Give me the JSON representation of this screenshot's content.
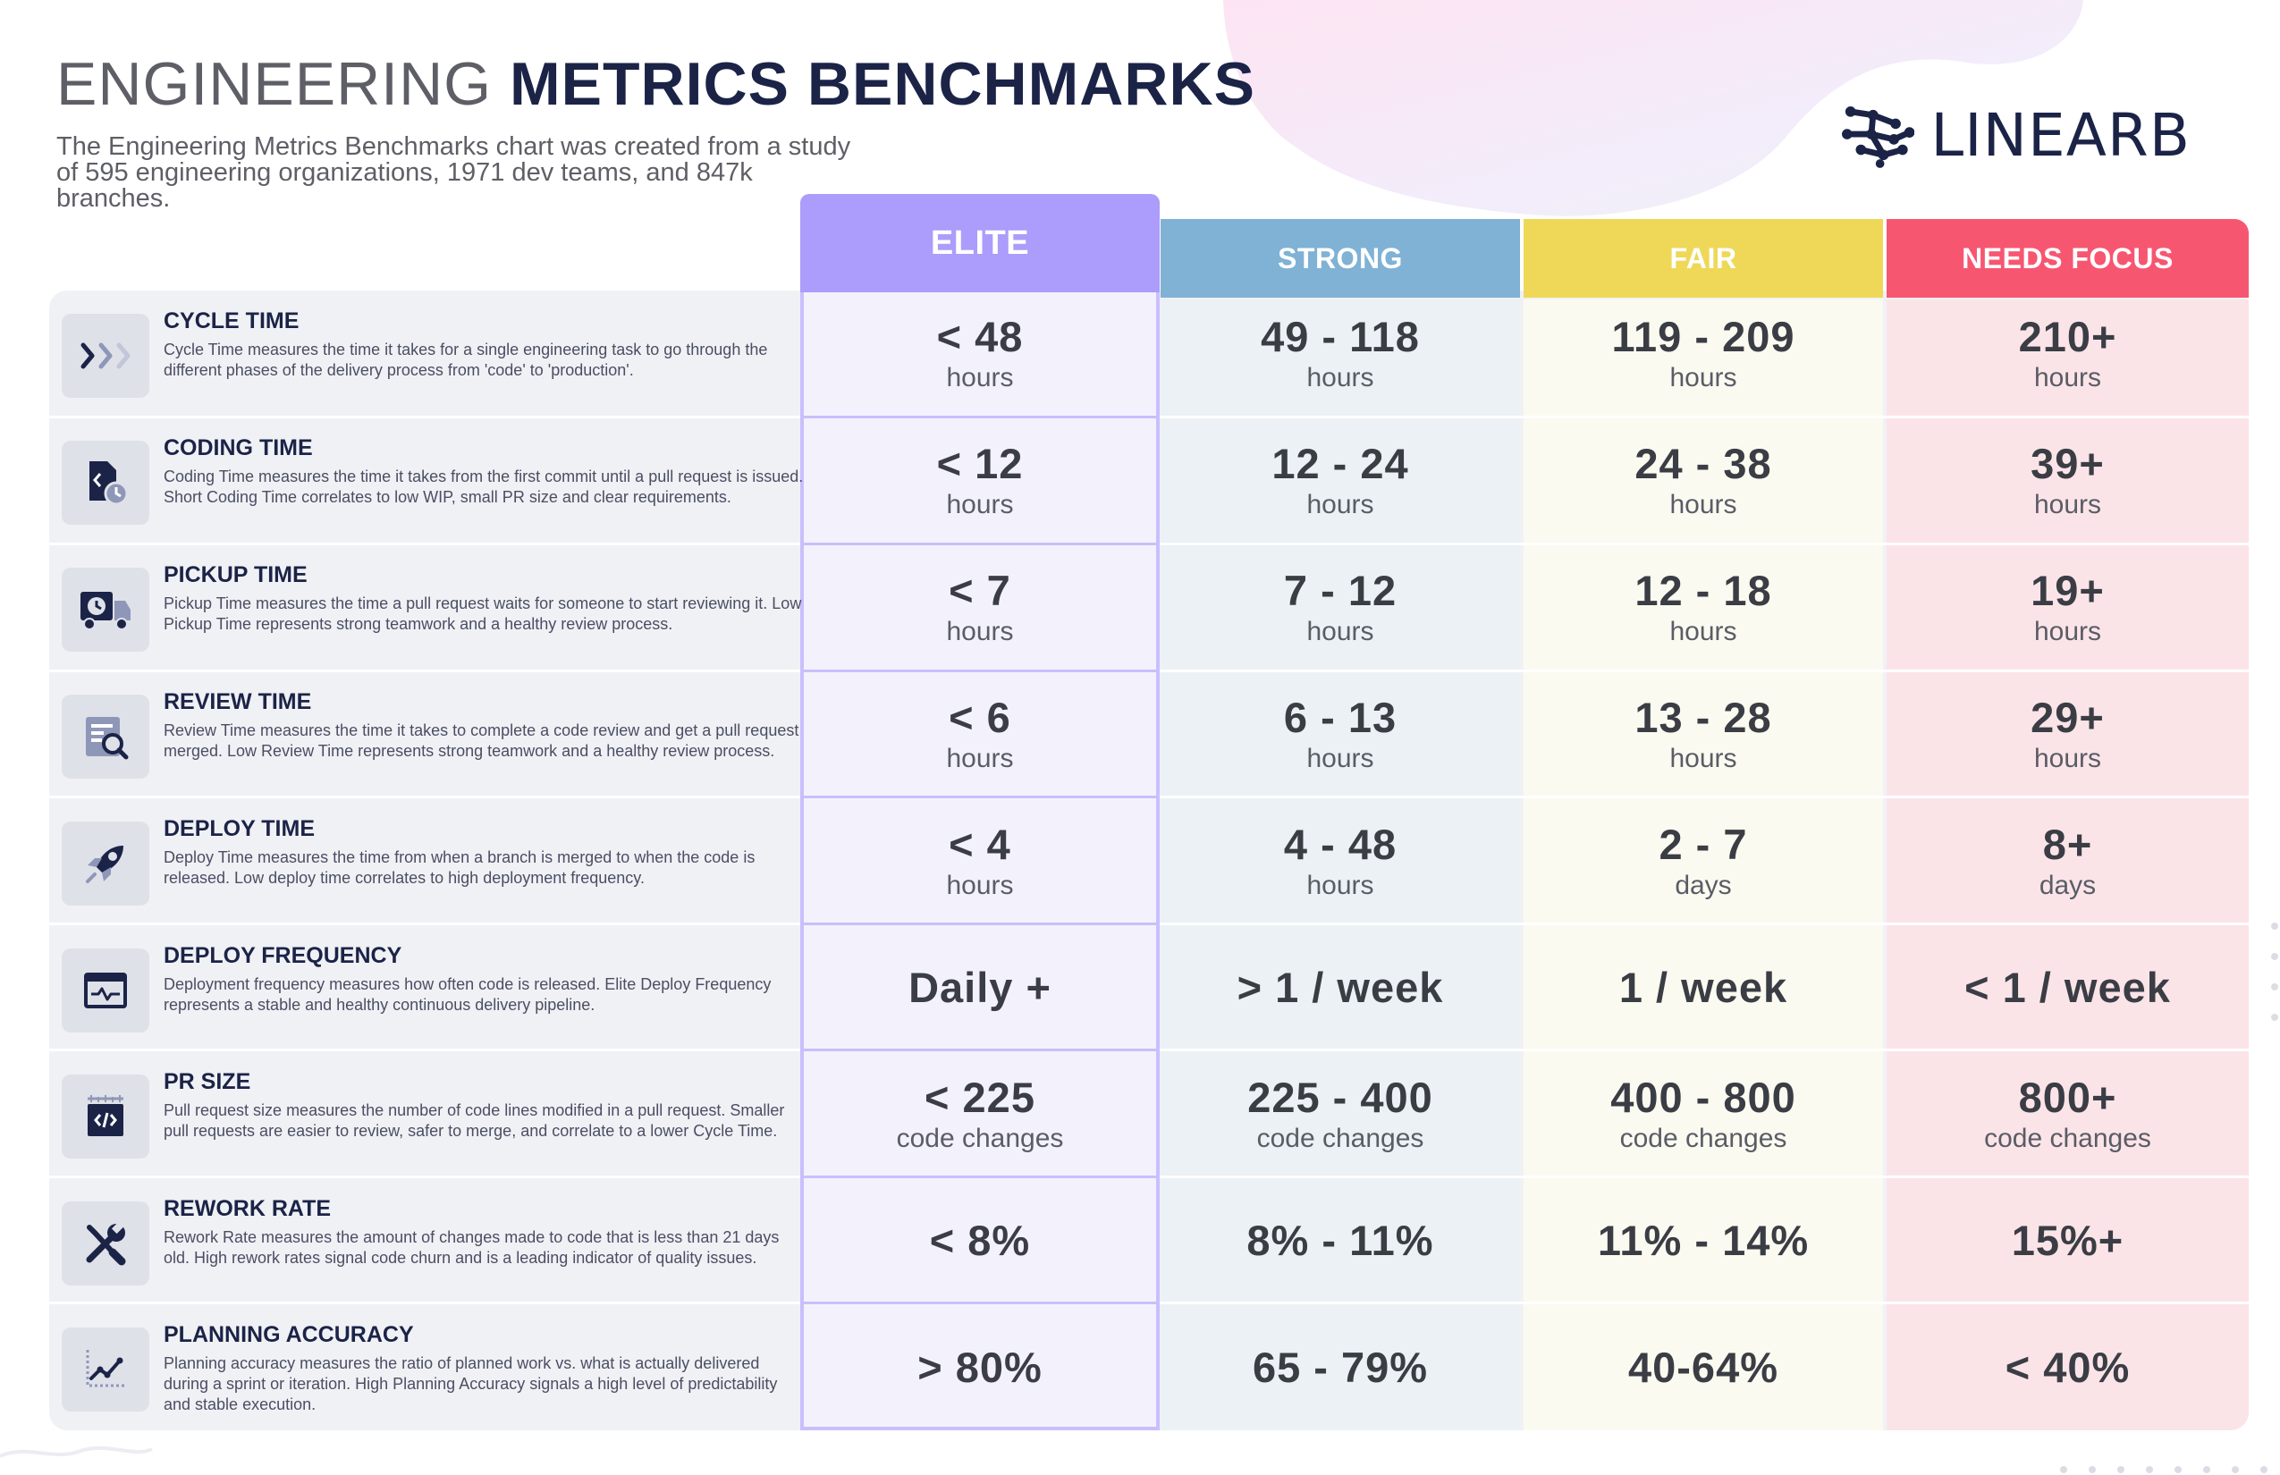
{
  "header": {
    "title_light": "ENGINEERING",
    "title_bold": "METRICS BENCHMARKS",
    "subtitle": "The Engineering Metrics Benchmarks chart was created from a study of 595 engineering organizations, 1971 dev teams, and 847k branches."
  },
  "logo": {
    "text": "LINEARB",
    "icon": "linearb-molecule-icon"
  },
  "colors": {
    "elite": "#ac9cfb",
    "strong": "#7fb2d4",
    "fair": "#efd858",
    "needs_focus": "#f75671",
    "elite_bg": "#f3f2fc",
    "strong_bg": "#ebf1f5",
    "fair_bg": "#fbfaf0",
    "needs_bg": "#fbe4e8",
    "navy": "#1b2347"
  },
  "columns": [
    "ELITE",
    "STRONG",
    "FAIR",
    "NEEDS FOCUS"
  ],
  "metrics": [
    {
      "title": "CYCLE TIME",
      "icon": "chevrons-right-icon",
      "desc": "Cycle Time measures the time it takes for a single engineering task to go through the different phases of the delivery process from 'code' to 'production'.",
      "values": [
        {
          "v": "< 48",
          "u": "hours"
        },
        {
          "v": "49 - 118",
          "u": "hours"
        },
        {
          "v": "119 - 209",
          "u": "hours"
        },
        {
          "v": "210+",
          "u": "hours"
        }
      ]
    },
    {
      "title": "CODING TIME",
      "icon": "code-file-clock-icon",
      "desc": "Coding Time measures the time it takes from the first commit until a pull request is issued. Short Coding Time correlates to low WIP, small PR size and clear requirements.",
      "values": [
        {
          "v": "< 12",
          "u": "hours"
        },
        {
          "v": "12 - 24",
          "u": "hours"
        },
        {
          "v": "24 - 38",
          "u": "hours"
        },
        {
          "v": "39+",
          "u": "hours"
        }
      ]
    },
    {
      "title": "PICKUP TIME",
      "icon": "delivery-truck-clock-icon",
      "desc": "Pickup Time measures the time a pull request waits for someone to start reviewing it. Low Pickup Time represents strong teamwork and a healthy review process.",
      "values": [
        {
          "v": "< 7",
          "u": "hours"
        },
        {
          "v": "7 - 12",
          "u": "hours"
        },
        {
          "v": "12 - 18",
          "u": "hours"
        },
        {
          "v": "19+",
          "u": "hours"
        }
      ]
    },
    {
      "title": "REVIEW TIME",
      "icon": "document-magnifier-icon",
      "desc": "Review Time measures the time it takes to complete a code review and get a pull request merged. Low Review Time represents strong teamwork and a healthy review process.",
      "values": [
        {
          "v": "< 6",
          "u": "hours"
        },
        {
          "v": "6 - 13",
          "u": "hours"
        },
        {
          "v": "13 - 28",
          "u": "hours"
        },
        {
          "v": "29+",
          "u": "hours"
        }
      ]
    },
    {
      "title": "DEPLOY TIME",
      "icon": "rocket-icon",
      "desc": "Deploy Time measures the time from when a branch is merged to when the code is released. Low deploy time correlates to high deployment frequency.",
      "values": [
        {
          "v": "< 4",
          "u": "hours"
        },
        {
          "v": "4 - 48",
          "u": "hours"
        },
        {
          "v": "2 - 7",
          "u": "days"
        },
        {
          "v": "8+",
          "u": "days"
        }
      ]
    },
    {
      "title": "DEPLOY FREQUENCY",
      "icon": "browser-pulse-icon",
      "desc": "Deployment frequency measures how often code is released. Elite Deploy Frequency represents a stable and healthy continuous delivery pipeline.",
      "values": [
        {
          "v": "Daily +",
          "u": ""
        },
        {
          "v": ">  1 / week",
          "u": ""
        },
        {
          "v": "1 / week",
          "u": ""
        },
        {
          "v": "< 1 / week",
          "u": ""
        }
      ]
    },
    {
      "title": "PR SIZE",
      "icon": "code-ruler-icon",
      "desc": "Pull request size measures the number of code lines modified in a pull request. Smaller pull requests are easier to review, safer to merge, and correlate to a lower Cycle Time.",
      "values": [
        {
          "v": "< 225",
          "u": "code changes"
        },
        {
          "v": "225 - 400",
          "u": "code changes"
        },
        {
          "v": "400 - 800",
          "u": "code changes"
        },
        {
          "v": "800+",
          "u": "code changes"
        }
      ]
    },
    {
      "title": "REWORK RATE",
      "icon": "wrench-screwdriver-icon",
      "desc": "Rework Rate measures the amount of changes made to code that is less than 21 days old. High rework rates signal code churn and is a leading indicator of quality issues.",
      "values": [
        {
          "v": "< 8%",
          "u": ""
        },
        {
          "v": "8% - 11%",
          "u": ""
        },
        {
          "v": "11% - 14%",
          "u": ""
        },
        {
          "v": "15%+",
          "u": ""
        }
      ]
    },
    {
      "title": "PLANNING ACCURACY",
      "icon": "line-chart-icon",
      "desc": "Planning accuracy measures the ratio of planned work vs. what is actually delivered during a sprint or iteration. High Planning Accuracy signals a high level of predictability and stable execution.",
      "values": [
        {
          "v": "> 80%",
          "u": ""
        },
        {
          "v": "65 - 79%",
          "u": ""
        },
        {
          "v": "40-64%",
          "u": ""
        },
        {
          "v": "< 40%",
          "u": ""
        }
      ]
    }
  ]
}
